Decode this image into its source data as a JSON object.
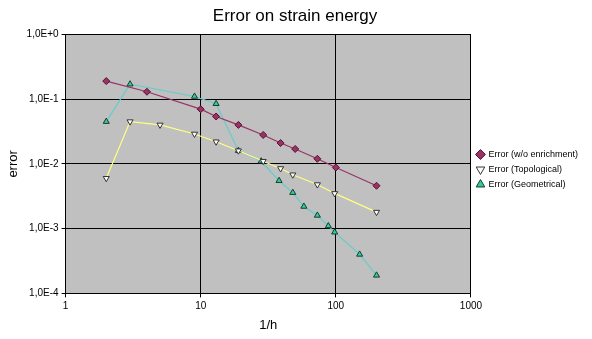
{
  "chart_data": {
    "type": "line",
    "title": "Error on strain energy",
    "x_label": "1/h",
    "y_label": "error",
    "log": true,
    "grid": true,
    "legend": "right",
    "xlim": [
      1,
      1000
    ],
    "xticks": [
      1,
      10,
      100,
      1000
    ],
    "ylim": [
      0.0001,
      1
    ],
    "yticks": [
      {
        "value": 0.0001,
        "label": "1,0E-4"
      },
      {
        "value": 0.001,
        "label": "1,0E-3"
      },
      {
        "value": 0.01,
        "label": "1,0E-2"
      },
      {
        "value": 0.1,
        "label": "1,0E-1"
      },
      {
        "value": 1,
        "label": "1,0E+0"
      }
    ],
    "series": [
      {
        "name": "Error (w/o enrichment)",
        "color": "#993366",
        "marker": "diamond",
        "x": [
          2,
          4,
          10,
          13,
          19,
          29,
          39,
          50,
          73,
          100,
          200
        ],
        "values": [
          0.19,
          0.13,
          0.07,
          0.054,
          0.04,
          0.028,
          0.021,
          0.017,
          0.012,
          0.0088,
          0.0046
        ]
      },
      {
        "name": "Error (Topological)",
        "color": "#ffff80",
        "marker": "triangle_down",
        "x": [
          2,
          3,
          5,
          9,
          13,
          19,
          29,
          39,
          48,
          73,
          98,
          200
        ],
        "values": [
          0.006,
          0.045,
          0.04,
          0.029,
          0.022,
          0.016,
          0.011,
          0.0085,
          0.0068,
          0.0048,
          0.0035,
          0.0018
        ]
      },
      {
        "name": "Error (Geometrical)",
        "color": "#66cccc",
        "marker": "triangle_up",
        "x": [
          2,
          3,
          9,
          13,
          19,
          28,
          38,
          48,
          58,
          73,
          88,
          98,
          150,
          200
        ],
        "values": [
          0.045,
          0.17,
          0.11,
          0.085,
          0.016,
          0.011,
          0.0055,
          0.0036,
          0.0022,
          0.0016,
          0.0011,
          0.00088,
          0.0004,
          0.00019
        ]
      }
    ]
  }
}
